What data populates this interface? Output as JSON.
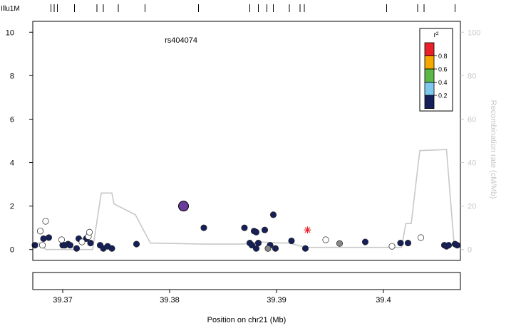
{
  "snp_track": {
    "label": "Illu1M",
    "positions": [
      39.3689,
      39.3692,
      39.3695,
      39.3711,
      39.3732,
      39.3738,
      39.3752,
      39.3777,
      39.3827,
      39.3875,
      39.3883,
      39.3891,
      39.3897,
      39.3912,
      39.3922,
      39.3926,
      39.4003,
      39.4032,
      39.4038,
      39.4067
    ]
  },
  "chart_data": {
    "type": "scatter",
    "title": "",
    "xlabel": "Position on chr21 (Mb)",
    "ylabel": "",
    "ylabel_right": "Recombination rate (cM/Mb)",
    "xlim": [
      39.3672,
      39.4072
    ],
    "ylim": [
      -0.5,
      10.5
    ],
    "xticks": [
      39.37,
      39.38,
      39.39,
      39.4
    ],
    "xtick_labels": [
      "39.37",
      "39.38",
      "39.39",
      "39.4"
    ],
    "yticks": [
      0,
      2,
      4,
      6,
      8,
      10
    ],
    "ytick_labels": [
      "0",
      "2",
      "4",
      "6",
      "8",
      "10"
    ],
    "y2lim": [
      -5,
      105
    ],
    "y2ticks": [
      0,
      20,
      40,
      60,
      80,
      100
    ],
    "y2tick_labels": [
      "0",
      "20",
      "40",
      "60",
      "80",
      "100"
    ],
    "grid": false,
    "index_snp": {
      "name": "rs404074",
      "x": 39.3813,
      "y": 2.0,
      "color": "#6a3a9c"
    },
    "starred_point": {
      "x": 39.3929,
      "y": 0.9,
      "color": "#e8202a"
    },
    "legend": {
      "title": "r²",
      "position": "top-right",
      "bins": [
        {
          "label": "0.8",
          "color": "#e8202a"
        },
        {
          "label": "0.6",
          "color": "#f5a800"
        },
        {
          "label": "0.4",
          "color": "#5cb846"
        },
        {
          "label": "0.2",
          "color": "#7ec8ee"
        },
        {
          "label": "",
          "color": "#15205a"
        }
      ]
    },
    "recombination_rate": {
      "color": "#c8c8c8",
      "x": [
        39.3672,
        39.3678,
        39.3684,
        39.3728,
        39.3736,
        39.3746,
        39.3748,
        39.3768,
        39.3782,
        39.3833,
        39.3868,
        39.3885,
        39.3902,
        39.3912,
        39.3927,
        39.3996,
        39.4017,
        39.4021,
        39.4026,
        39.4034,
        39.4059,
        39.4066,
        39.4072
      ],
      "y": [
        0.3,
        0.3,
        0,
        0,
        2.6,
        2.6,
        2.1,
        1.6,
        0.3,
        0.25,
        0.25,
        0.35,
        0.3,
        0.3,
        0.1,
        0.1,
        0.1,
        1.2,
        1.2,
        4.55,
        4.6,
        0.3,
        0.1
      ]
    },
    "series": [
      {
        "name": "",
        "color": "#15205a",
        "x": [
          39.3674,
          39.3682,
          39.3687,
          39.37,
          39.3702,
          39.3705,
          39.3707,
          39.3713,
          39.3715,
          39.3722,
          39.3726,
          39.3735,
          39.3738,
          39.3742,
          39.3746,
          39.3769,
          39.3832,
          39.387,
          39.3875,
          39.3877,
          39.3879,
          39.3881,
          39.3881,
          39.3883,
          39.3889,
          39.3894,
          39.3897,
          39.3899,
          39.3914,
          39.3927,
          39.3983,
          39.4016,
          39.4023,
          39.4057,
          39.4059,
          39.4061,
          39.4067,
          39.4069
        ],
        "y": [
          0.2,
          0.5,
          0.55,
          0.2,
          0.2,
          0.25,
          0.2,
          0.05,
          0.5,
          0.5,
          0.3,
          0.2,
          0.05,
          0.15,
          0.05,
          0.25,
          1.0,
          1.0,
          0.3,
          0.2,
          0.85,
          0.8,
          0.05,
          0.3,
          0.9,
          0.2,
          1.6,
          0.05,
          0.4,
          0.05,
          0.35,
          0.3,
          0.3,
          0.2,
          0.15,
          0.2,
          0.25,
          0.2
        ]
      },
      {
        "name": "",
        "color": "#ffffff",
        "x": [
          39.3679,
          39.3681,
          39.3684,
          39.3699,
          39.3718,
          39.3724,
          39.3725,
          39.3946,
          39.4008,
          39.4035
        ],
        "y": [
          0.85,
          0.2,
          1.3,
          0.45,
          0.35,
          0.6,
          0.8,
          0.45,
          0.15,
          0.55
        ]
      },
      {
        "name": "",
        "color": "#888888",
        "x": [
          39.3892,
          39.3959
        ],
        "y": [
          0.05,
          0.28
        ]
      }
    ]
  }
}
